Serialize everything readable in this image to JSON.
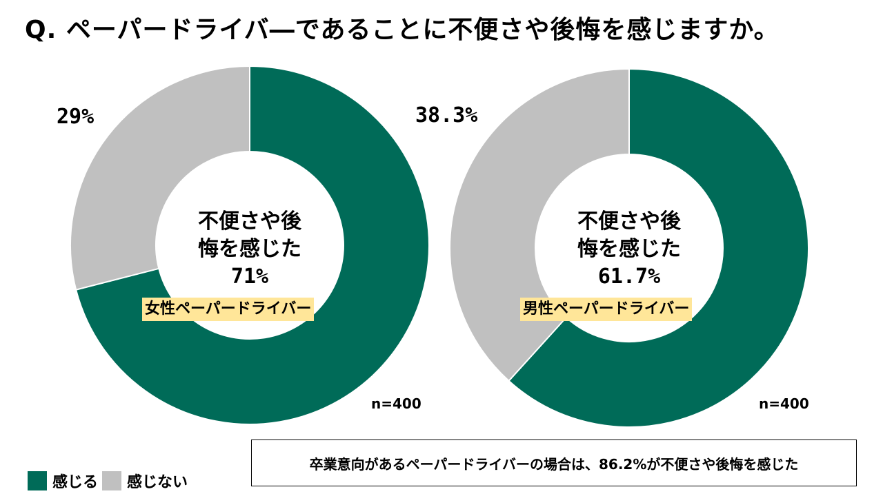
{
  "title": "Q. ペーパードライバ―であることに不便さや後悔を感じますか。",
  "colors": {
    "feel": "#006b58",
    "notfeel": "#c0c0c0",
    "tag": "#ffe699"
  },
  "chart_data": [
    {
      "type": "pie",
      "variant": "donut",
      "group": "女性ペーパードライバー",
      "labels": [
        "感じる",
        "感じない"
      ],
      "values": [
        71,
        29
      ],
      "value_labels": [
        "71%",
        "29%"
      ],
      "center": {
        "line1": "不便さや後",
        "line2": "悔を感じた",
        "value": "71%"
      },
      "n": "n=400"
    },
    {
      "type": "pie",
      "variant": "donut",
      "group": "男性ペーパードライバー",
      "labels": [
        "感じる",
        "感じない"
      ],
      "values": [
        61.7,
        38.3
      ],
      "value_labels": [
        "61.7%",
        "38.3%"
      ],
      "center": {
        "line1": "不便さや後",
        "line2": "悔を感じた",
        "value": "61.7%"
      },
      "n": "n=400"
    }
  ],
  "legend": [
    {
      "label": "感じる",
      "color": "#006b58"
    },
    {
      "label": "感じない",
      "color": "#c0c0c0"
    }
  ],
  "note": "卒業意向があるペーパードライバーの場合は、86.2%が不便さや後悔を感じた"
}
